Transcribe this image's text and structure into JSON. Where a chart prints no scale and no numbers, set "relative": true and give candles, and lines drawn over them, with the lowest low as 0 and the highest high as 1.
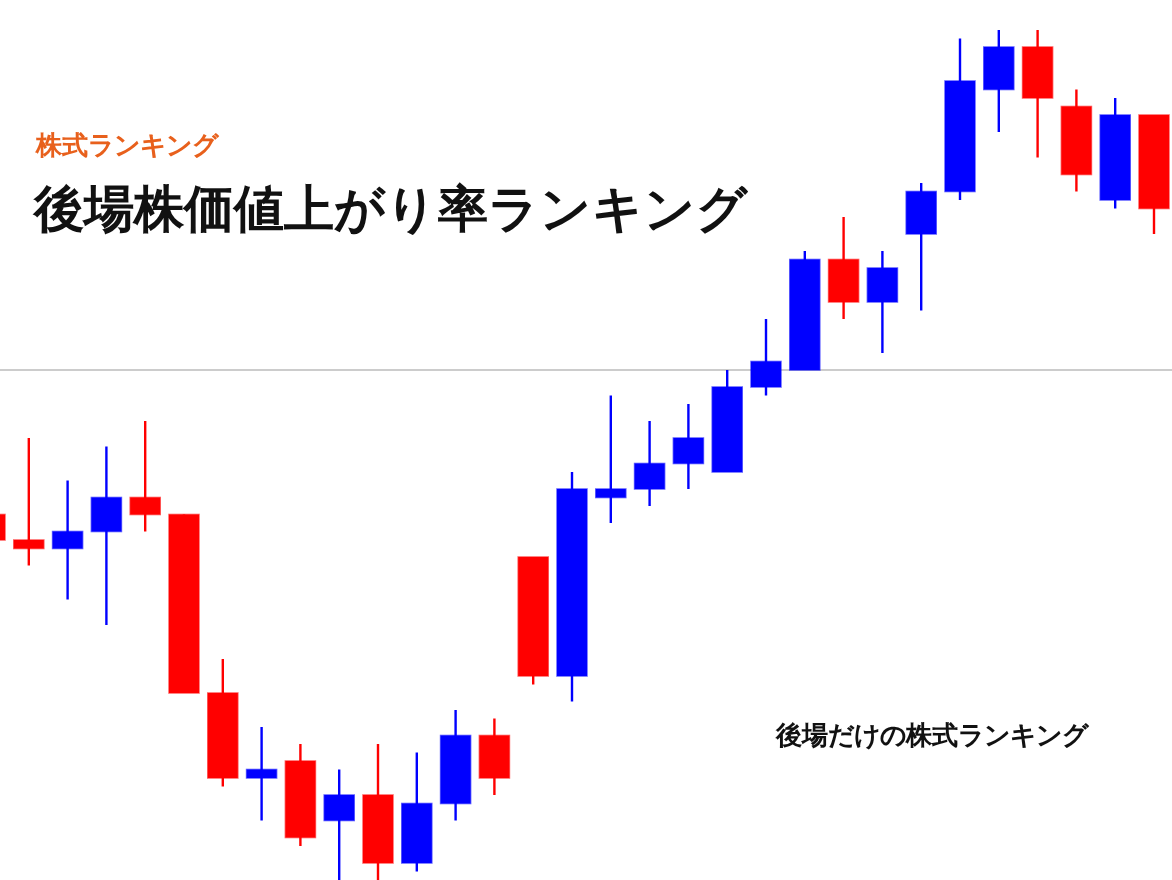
{
  "chart_data": {
    "type": "candlestick",
    "relative": true,
    "title": "後場株価値上がり率ランキング",
    "subtitle": "株式ランキング",
    "annotations": [
      "後場だけの株式ランキング"
    ],
    "categories": [
      null,
      null,
      null,
      null,
      null,
      null,
      null,
      null,
      null,
      null,
      null,
      null,
      null,
      null,
      null,
      null,
      null,
      null,
      null,
      null,
      null,
      null,
      null,
      null,
      null,
      null,
      null,
      null,
      null,
      null,
      null
    ],
    "ohlc": [
      [
        0.43,
        0.44,
        0.39,
        0.4
      ],
      [
        0.4,
        0.52,
        0.37,
        0.39
      ],
      [
        0.39,
        0.47,
        0.33,
        0.41
      ],
      [
        0.41,
        0.51,
        0.3,
        0.45
      ],
      [
        0.45,
        0.54,
        0.41,
        0.43
      ],
      [
        0.43,
        0.43,
        0.22,
        0.22
      ],
      [
        0.22,
        0.26,
        0.11,
        0.12
      ],
      [
        0.12,
        0.18,
        0.07,
        0.13
      ],
      [
        0.14,
        0.16,
        0.04,
        0.05
      ],
      [
        0.07,
        0.13,
        0,
        0.1
      ],
      [
        0.1,
        0.16,
        0,
        0.02
      ],
      [
        0.02,
        0.15,
        0.01,
        0.09
      ],
      [
        0.09,
        0.2,
        0.07,
        0.17
      ],
      [
        0.17,
        0.19,
        0.1,
        0.12
      ],
      [
        0.38,
        0.38,
        0.23,
        0.24
      ],
      [
        0.24,
        0.48,
        0.21,
        0.46
      ],
      [
        0.45,
        0.57,
        0.42,
        0.46
      ],
      [
        0.46,
        0.54,
        0.44,
        0.49
      ],
      [
        0.49,
        0.56,
        0.46,
        0.52
      ],
      [
        0.48,
        0.6,
        0.48,
        0.58
      ],
      [
        0.58,
        0.66,
        0.57,
        0.61
      ],
      [
        0.6,
        0.74,
        0.6,
        0.73
      ],
      [
        0.73,
        0.78,
        0.66,
        0.68
      ],
      [
        0.68,
        0.74,
        0.62,
        0.72
      ],
      [
        0.76,
        0.82,
        0.67,
        0.81
      ],
      [
        0.81,
        0.99,
        0.8,
        0.94
      ],
      [
        0.93,
        1,
        0.88,
        0.98
      ],
      [
        0.98,
        1,
        0.85,
        0.92
      ],
      [
        0.91,
        0.93,
        0.81,
        0.83
      ],
      [
        0.8,
        0.92,
        0.79,
        0.9
      ],
      [
        0.9,
        0.9,
        0.76,
        0.79
      ]
    ],
    "colors": [
      "#ff0000",
      "#ff0000",
      "#0000ff",
      "#0000ff",
      "#ff0000",
      "#ff0000",
      "#ff0000",
      "#0000ff",
      "#ff0000",
      "#0000ff",
      "#ff0000",
      "#0000ff",
      "#0000ff",
      "#ff0000",
      "#ff0000",
      "#0000ff",
      "#0000ff",
      "#0000ff",
      "#0000ff",
      "#0000ff",
      "#0000ff",
      "#0000ff",
      "#ff0000",
      "#0000ff",
      "#0000ff",
      "#0000ff",
      "#0000ff",
      "#ff0000",
      "#ff0000",
      "#0000ff",
      "#ff0000"
    ],
    "ref_lines": [
      {
        "axis": "y",
        "value": 0.6,
        "color": "#cccccc"
      }
    ]
  }
}
